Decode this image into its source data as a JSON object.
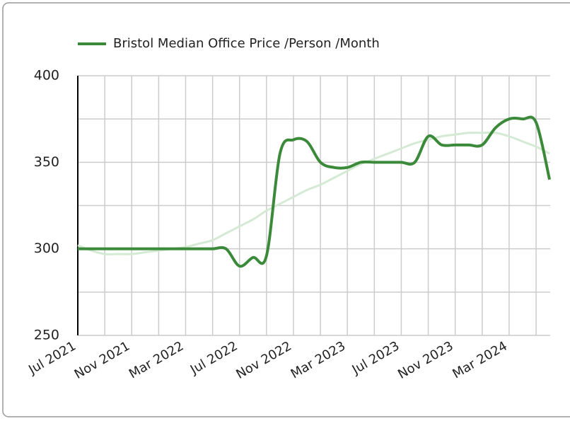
{
  "chart_data": {
    "type": "line",
    "categories": [
      "Jul 2021",
      null,
      null,
      null,
      "Nov 2021",
      null,
      null,
      null,
      "Mar 2022",
      null,
      null,
      null,
      "Jul 2022",
      null,
      null,
      null,
      "Nov 2022",
      null,
      null,
      null,
      "Mar 2023",
      null,
      null,
      null,
      "Jul 2023",
      null,
      null,
      null,
      "Nov 2023",
      null,
      null,
      null,
      "Mar 2024",
      null,
      null,
      null
    ],
    "series": [
      {
        "name": "Bristol Median Office Price /Person /Month",
        "color": "#3a8a3a",
        "values": [
          300,
          300,
          300,
          300,
          300,
          300,
          300,
          300,
          300,
          300,
          300,
          300,
          290,
          295,
          296,
          355,
          363,
          362,
          350,
          347,
          347,
          350,
          350,
          350,
          350,
          350,
          365,
          360,
          360,
          360,
          360,
          370,
          375,
          375,
          373,
          340
        ]
      },
      {
        "color": "#d4ead4",
        "values": [
          302,
          299,
          297,
          297,
          297,
          298,
          299,
          300,
          301,
          303,
          305,
          309,
          313,
          317,
          322,
          326,
          330,
          334,
          337,
          341,
          345,
          349,
          352,
          355,
          358,
          361,
          363,
          365,
          366,
          367,
          367,
          367,
          365,
          362,
          359,
          355
        ]
      }
    ],
    "ylim": [
      250,
      400
    ],
    "yticks": [
      250,
      300,
      350,
      400
    ],
    "grid": true,
    "legend": "top"
  }
}
